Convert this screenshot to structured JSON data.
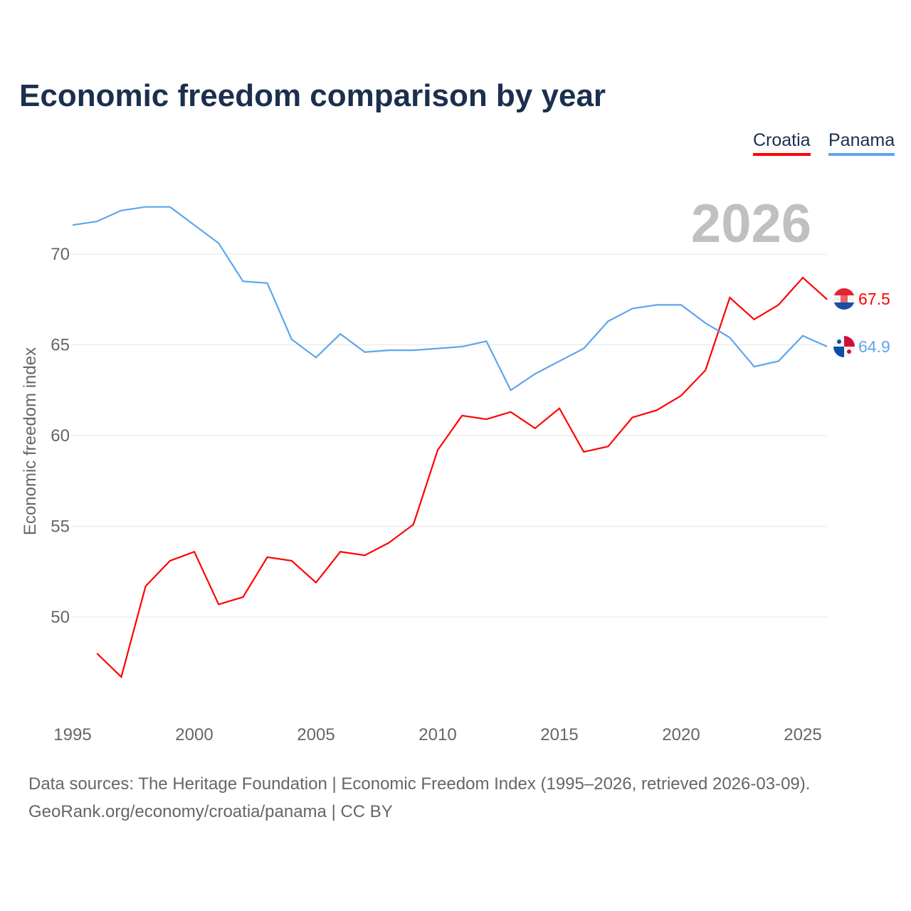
{
  "chart_data": {
    "type": "line",
    "title": "Economic freedom comparison by year",
    "ylabel": "Economic freedom index",
    "xlabel": "",
    "watermark_year": "2026",
    "xlim": [
      1995,
      2026
    ],
    "ylim": [
      45.5,
      72.5
    ],
    "xticks": [
      "1995",
      "2000",
      "2005",
      "2010",
      "2015",
      "2020",
      "2025"
    ],
    "yticks": [
      "50",
      "55",
      "60",
      "65",
      "70"
    ],
    "legend_position": "top-right",
    "series": [
      {
        "name": "Croatia",
        "color": "#ff0000",
        "end_label": "67.5",
        "x": [
          1996,
          1997,
          1998,
          1999,
          2000,
          2001,
          2002,
          2003,
          2004,
          2005,
          2006,
          2007,
          2008,
          2009,
          2010,
          2011,
          2012,
          2013,
          2014,
          2015,
          2016,
          2017,
          2018,
          2019,
          2020,
          2021,
          2022,
          2023,
          2024,
          2025,
          2026
        ],
        "values": [
          48.0,
          46.7,
          51.7,
          53.1,
          53.6,
          50.7,
          51.1,
          53.3,
          53.1,
          51.9,
          53.6,
          53.4,
          54.1,
          55.1,
          59.2,
          61.1,
          60.9,
          61.3,
          60.4,
          61.5,
          59.1,
          59.4,
          61.0,
          61.4,
          62.2,
          63.6,
          67.6,
          66.4,
          67.2,
          68.7,
          67.5
        ]
      },
      {
        "name": "Panama",
        "color": "#5ea5ec",
        "end_label": "64.9",
        "x": [
          1995,
          1996,
          1997,
          1998,
          1999,
          2000,
          2001,
          2002,
          2003,
          2004,
          2005,
          2006,
          2007,
          2008,
          2009,
          2010,
          2011,
          2012,
          2013,
          2014,
          2015,
          2016,
          2017,
          2018,
          2019,
          2020,
          2021,
          2022,
          2023,
          2024,
          2025,
          2026
        ],
        "values": [
          71.6,
          71.8,
          72.4,
          72.6,
          72.6,
          71.6,
          70.6,
          68.5,
          68.4,
          65.3,
          64.3,
          65.6,
          64.6,
          64.7,
          64.7,
          64.8,
          64.9,
          65.2,
          62.5,
          63.4,
          64.1,
          64.8,
          66.3,
          67.0,
          67.2,
          67.2,
          66.2,
          65.4,
          63.8,
          64.1,
          65.5,
          64.9
        ]
      }
    ]
  },
  "footer": {
    "line1": "Data sources: The Heritage Foundation | Economic Freedom Index (1995–2026, retrieved 2026-03-09).",
    "line2": "GeoRank.org/economy/croatia/panama | CC BY"
  }
}
